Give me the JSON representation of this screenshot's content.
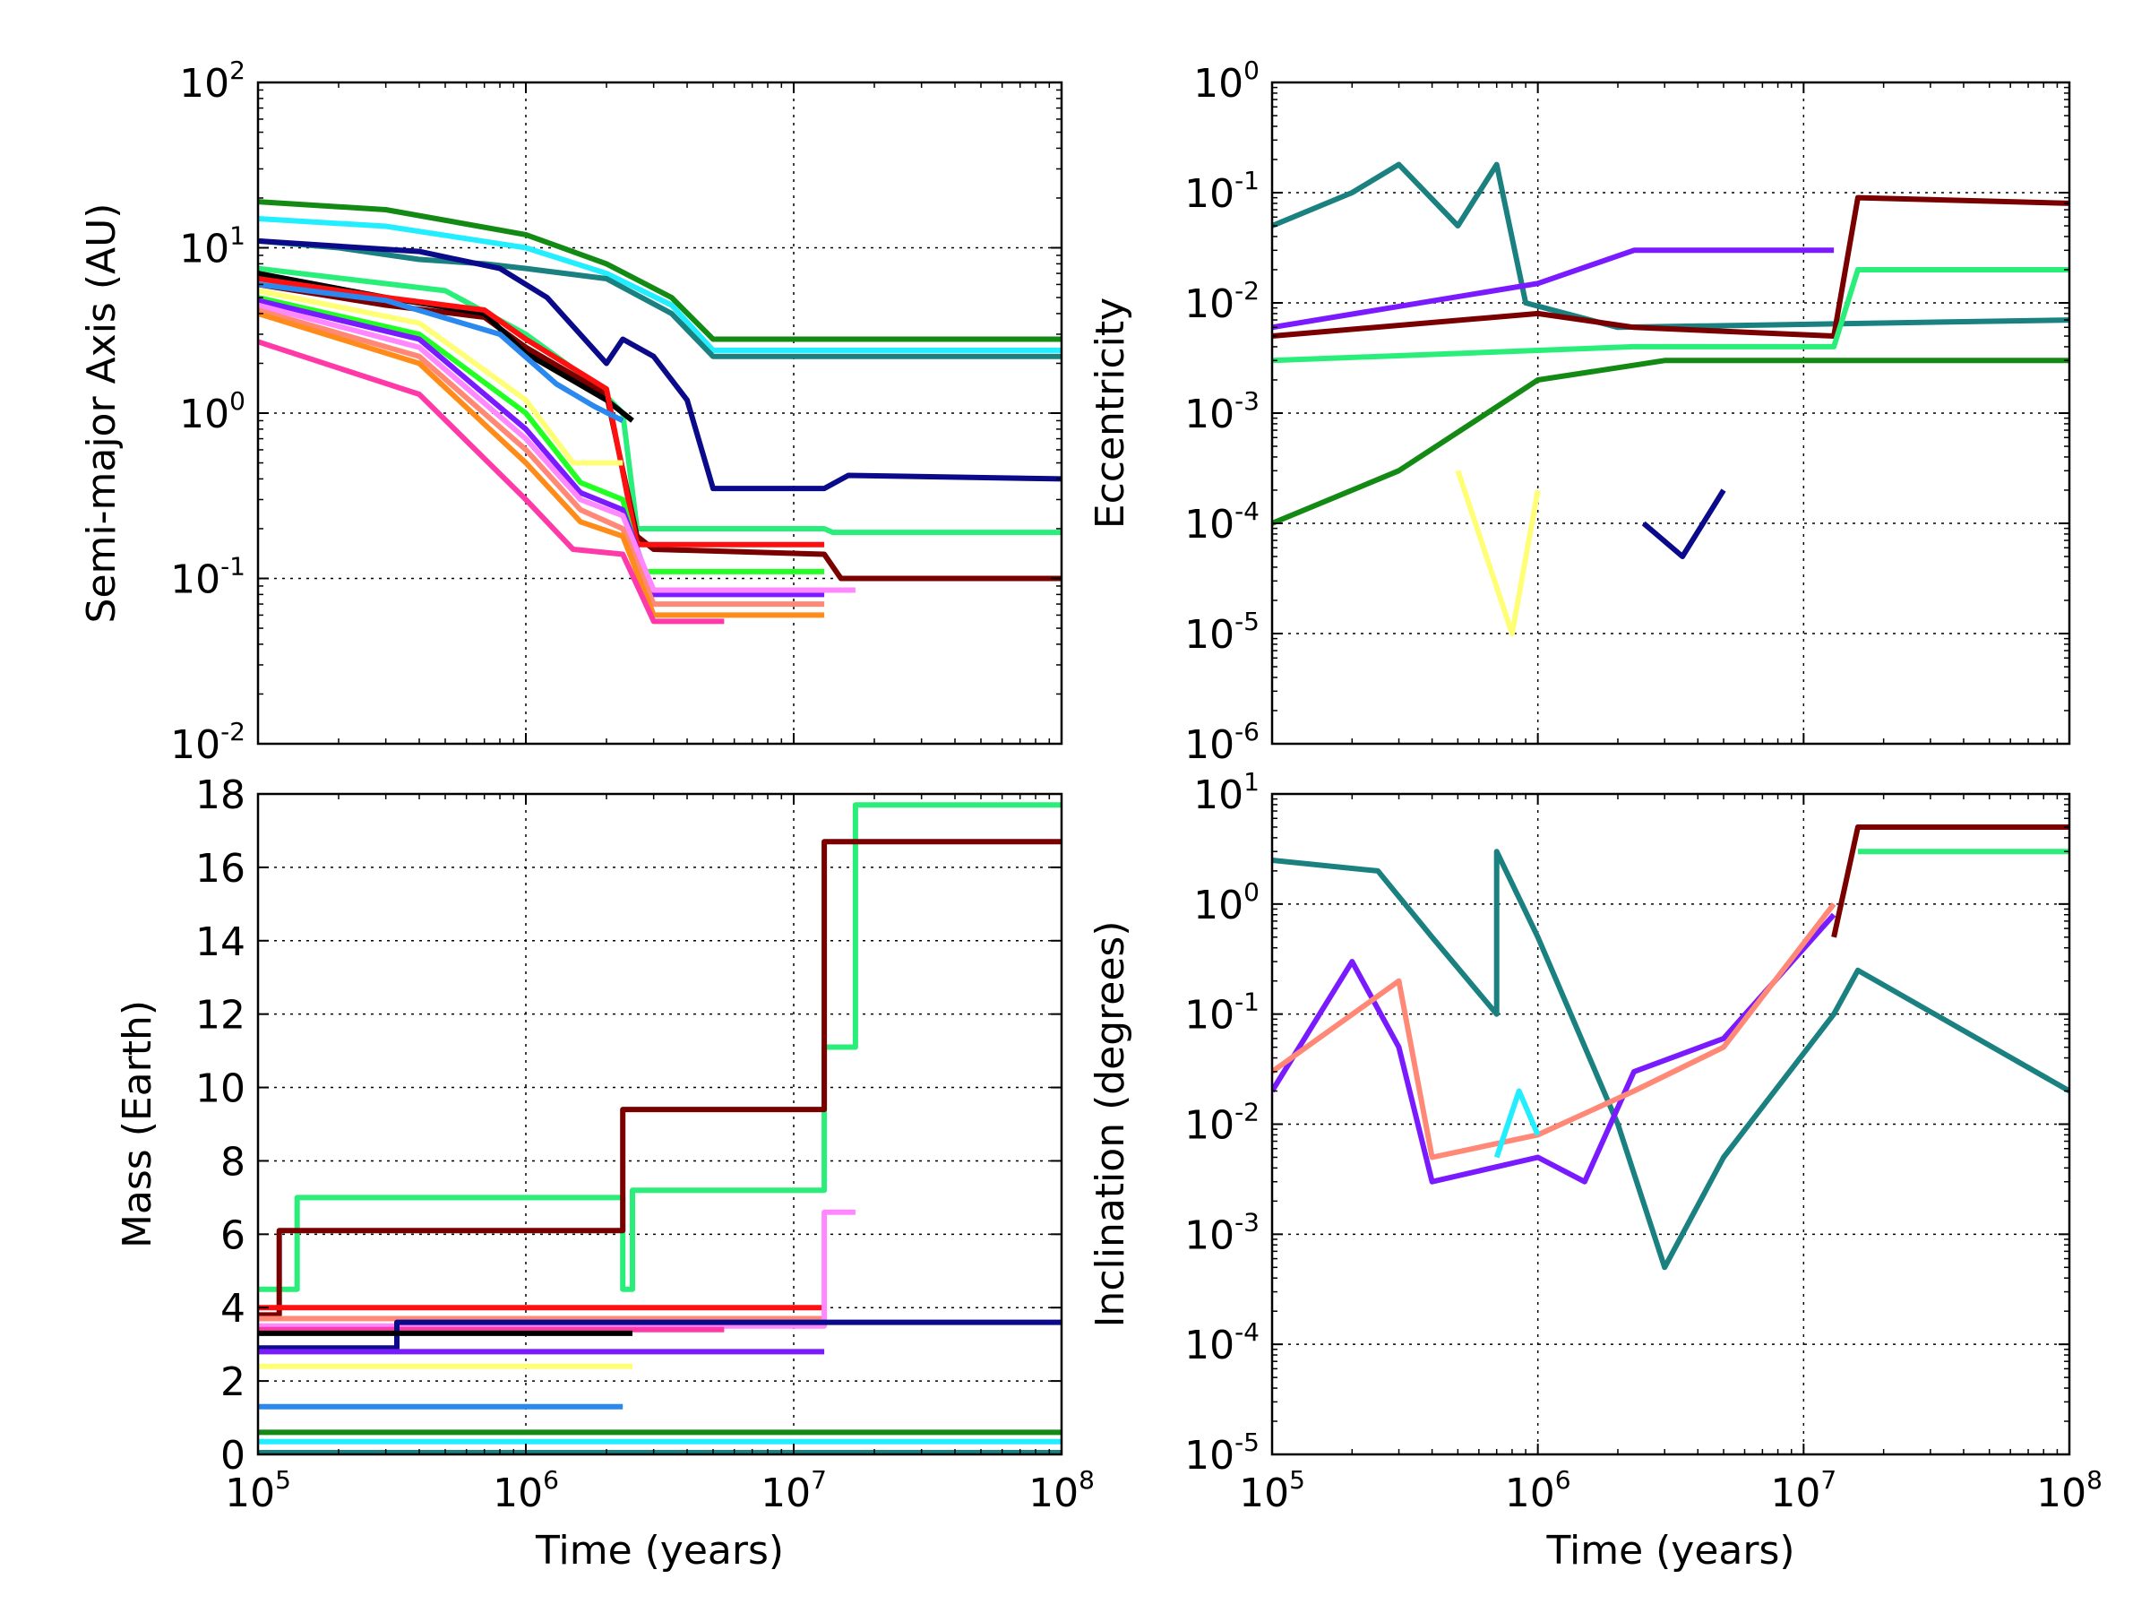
{
  "chart_data": [
    {
      "id": "semimajor",
      "type": "line",
      "xscale": "log",
      "yscale": "log",
      "xlim": [
        100000,
        100000000
      ],
      "ylim": [
        0.01,
        100
      ],
      "xlabel": "",
      "ylabel": "Semi-major Axis (AU)",
      "xtick_labels": false,
      "grid": true,
      "series": [
        {
          "name": "dark green",
          "color": "#138a13",
          "x": [
            100000.0,
            300000.0,
            1000000.0,
            2000000.0,
            3500000.0,
            5000000.0,
            100000000.0
          ],
          "y": [
            19,
            17,
            12,
            8,
            5,
            2.8,
            2.8
          ]
        },
        {
          "name": "cyan",
          "color": "#22eeff",
          "x": [
            100000.0,
            300000.0,
            1000000.0,
            2000000.0,
            3500000.0,
            5000000.0,
            100000000.0
          ],
          "y": [
            15,
            13.5,
            10,
            7,
            4.5,
            2.4,
            2.4
          ]
        },
        {
          "name": "teal",
          "color": "#1a8080",
          "x": [
            100000.0,
            200000.0,
            400000.0,
            700000.0,
            1000000.0,
            2000000.0,
            3500000.0,
            5000000.0,
            100000000.0
          ],
          "y": [
            11,
            10,
            8.5,
            8,
            7.5,
            6.5,
            4,
            2.2,
            2.2
          ]
        },
        {
          "name": "navy",
          "color": "#0a0a8a",
          "x": [
            100000.0,
            400000.0,
            800000.0,
            1200000.0,
            2000000.0,
            2300000.0,
            3000000.0,
            4000000.0,
            5000000.0,
            13000000.0,
            16000000.0,
            100000000.0
          ],
          "y": [
            11,
            9.5,
            7.5,
            5,
            2.0,
            2.8,
            2.2,
            1.2,
            0.35,
            0.35,
            0.42,
            0.4
          ]
        },
        {
          "name": "spring green",
          "color": "#2aee7a",
          "x": [
            100000.0,
            500000.0,
            1000000.0,
            1800000.0,
            2300000.0,
            2600000.0,
            13000000.0,
            14000000.0,
            100000000.0
          ],
          "y": [
            7.5,
            5.5,
            3,
            1.5,
            1.0,
            0.2,
            0.2,
            0.19,
            0.19
          ]
        },
        {
          "name": "maroon",
          "color": "#7a0000",
          "x": [
            100000.0,
            300000.0,
            700000.0,
            1000000.0,
            2000000.0,
            2600000.0,
            3000000.0,
            13000000.0,
            15000000.0,
            100000000.0
          ],
          "y": [
            6,
            4.5,
            3.8,
            2.5,
            1.3,
            0.18,
            0.15,
            0.14,
            0.1,
            0.1
          ]
        },
        {
          "name": "black",
          "color": "#000000",
          "x": [
            100000.0,
            300000.0,
            700000.0,
            1000000.0,
            2000000.0,
            2500000.0
          ],
          "y": [
            7,
            5,
            4.0,
            2.3,
            1.2,
            0.9
          ]
        },
        {
          "name": "red",
          "color": "#ff1010",
          "x": [
            100000.0,
            300000.0,
            700000.0,
            1000000.0,
            2000000.0,
            2600000.0,
            13000000.0
          ],
          "y": [
            6.5,
            5,
            4.2,
            2.8,
            1.4,
            0.16,
            0.16
          ]
        },
        {
          "name": "blue",
          "color": "#2a88ee",
          "x": [
            100000.0,
            300000.0,
            800000.0,
            1300000.0,
            1800000.0,
            2300000.0
          ],
          "y": [
            6,
            4.8,
            3,
            1.5,
            1.1,
            0.9
          ]
        },
        {
          "name": "yellow",
          "color": "#ffff77",
          "x": [
            100000.0,
            400000.0,
            1000000.0,
            1500000.0,
            2300000.0
          ],
          "y": [
            5.5,
            3.5,
            1.2,
            0.5,
            0.5
          ]
        },
        {
          "name": "green",
          "color": "#22ff22",
          "x": [
            100000.0,
            400000.0,
            1000000.0,
            1600000.0,
            2300000.0,
            2700000.0,
            13000000.0
          ],
          "y": [
            5,
            3,
            1.0,
            0.38,
            0.3,
            0.11,
            0.11
          ]
        },
        {
          "name": "violet",
          "color": "#7a1aff",
          "x": [
            100000.0,
            400000.0,
            1000000.0,
            1600000.0,
            2300000.0,
            3000000.0,
            13000000.0
          ],
          "y": [
            4.8,
            2.8,
            0.8,
            0.33,
            0.26,
            0.08,
            0.08
          ]
        },
        {
          "name": "light pink",
          "color": "#ff88ff",
          "x": [
            100000.0,
            400000.0,
            1000000.0,
            1600000.0,
            2300000.0,
            3000000.0,
            13000000.0,
            17000000.0
          ],
          "y": [
            4.5,
            2.5,
            0.7,
            0.3,
            0.24,
            0.085,
            0.085,
            0.085
          ]
        },
        {
          "name": "salmon",
          "color": "#ff8877",
          "x": [
            100000.0,
            400000.0,
            1000000.0,
            1600000.0,
            2300000.0,
            3000000.0,
            13000000.0
          ],
          "y": [
            4.2,
            2.2,
            0.6,
            0.26,
            0.2,
            0.07,
            0.07
          ]
        },
        {
          "name": "orange",
          "color": "#ff8c1a",
          "x": [
            100000.0,
            400000.0,
            1000000.0,
            1600000.0,
            2300000.0,
            3000000.0,
            13000000.0
          ],
          "y": [
            4.0,
            2.0,
            0.5,
            0.22,
            0.18,
            0.06,
            0.06
          ]
        },
        {
          "name": "magenta",
          "color": "#ff3aa8",
          "x": [
            100000.0,
            400000.0,
            1000000.0,
            1500000.0,
            2300000.0,
            3000000.0,
            5500000.0
          ],
          "y": [
            2.7,
            1.3,
            0.3,
            0.15,
            0.14,
            0.055,
            0.055
          ]
        }
      ]
    },
    {
      "id": "eccentricity",
      "type": "line",
      "xscale": "log",
      "yscale": "log",
      "xlim": [
        100000,
        100000000
      ],
      "ylim": [
        1e-06,
        1
      ],
      "xlabel": "",
      "ylabel": "Eccentricity",
      "xtick_labels": false,
      "grid": true,
      "series": [
        {
          "name": "teal",
          "color": "#1a8080",
          "x": [
            100000.0,
            200000.0,
            300000.0,
            500000.0,
            700000.0,
            900000.0,
            2000000.0,
            100000000.0
          ],
          "y": [
            0.05,
            0.1,
            0.18,
            0.05,
            0.18,
            0.01,
            0.006,
            0.007
          ]
        },
        {
          "name": "maroon",
          "color": "#7a0000",
          "x": [
            100000.0,
            1000000.0,
            2300000.0,
            13000000.0,
            16000000.0,
            100000000.0
          ],
          "y": [
            0.005,
            0.008,
            0.006,
            0.005,
            0.09,
            0.08
          ]
        },
        {
          "name": "spring green",
          "color": "#2aee7a",
          "x": [
            100000.0,
            2300000.0,
            13000000.0,
            16000000.0,
            100000000.0
          ],
          "y": [
            0.003,
            0.004,
            0.004,
            0.02,
            0.02
          ]
        },
        {
          "name": "dark green",
          "color": "#138a13",
          "x": [
            100000.0,
            300000.0,
            1000000.0,
            3000000.0,
            100000000.0
          ],
          "y": [
            0.0001,
            0.0003,
            0.002,
            0.003,
            0.003
          ]
        },
        {
          "name": "violet",
          "color": "#7a1aff",
          "x": [
            100000.0,
            1000000.0,
            2300000.0,
            5000000.0,
            13000000.0
          ],
          "y": [
            0.006,
            0.015,
            0.03,
            0.03,
            0.03
          ]
        },
        {
          "name": "navy",
          "color": "#0a0a8a",
          "x": [
            2500000.0,
            3500000.0,
            5000000.0
          ],
          "y": [
            0.0001,
            5e-05,
            0.0002
          ]
        },
        {
          "name": "yellow",
          "color": "#ffff77",
          "x": [
            500000.0,
            800000.0,
            1000000.0
          ],
          "y": [
            0.0003,
            1e-05,
            0.0002
          ]
        }
      ]
    },
    {
      "id": "mass",
      "type": "line",
      "xscale": "log",
      "yscale": "linear",
      "xlim": [
        100000,
        100000000
      ],
      "ylim": [
        0,
        18
      ],
      "xlabel": "Time (years)",
      "ylabel": "Mass (Earth)",
      "grid": true,
      "series": [
        {
          "name": "spring green",
          "color": "#2aee7a",
          "x": [
            100000.0,
            140000.0,
            140000.0,
            2300000.0,
            2300000.0,
            2500000.0,
            2500000.0,
            13000000.0,
            13000000.0,
            17000000.0,
            17000000.0,
            100000000.0
          ],
          "y": [
            4.5,
            4.5,
            7.0,
            7.0,
            4.5,
            4.5,
            7.2,
            7.2,
            11.1,
            11.1,
            17.7,
            17.7
          ]
        },
        {
          "name": "maroon",
          "color": "#7a0000",
          "x": [
            100000.0,
            120000.0,
            120000.0,
            2300000.0,
            2300000.0,
            13000000.0,
            13000000.0,
            100000000.0
          ],
          "y": [
            3.8,
            3.8,
            6.1,
            6.1,
            9.4,
            9.4,
            16.7,
            16.7
          ]
        },
        {
          "name": "red",
          "color": "#ff1010",
          "x": [
            100000.0,
            13000000.0
          ],
          "y": [
            4.0,
            4.0
          ]
        },
        {
          "name": "salmon",
          "color": "#ff8877",
          "x": [
            100000.0,
            13000000.0
          ],
          "y": [
            3.7,
            3.7
          ]
        },
        {
          "name": "light pink",
          "color": "#ff88ff",
          "x": [
            100000.0,
            13000000.0,
            13000000.0,
            17000000.0
          ],
          "y": [
            3.5,
            3.5,
            6.6,
            6.6
          ]
        },
        {
          "name": "magenta",
          "color": "#ff3aa8",
          "x": [
            100000.0,
            5500000.0
          ],
          "y": [
            3.4,
            3.4
          ]
        },
        {
          "name": "navy",
          "color": "#0a0a8a",
          "x": [
            100000.0,
            330000.0,
            330000.0,
            100000000.0
          ],
          "y": [
            2.9,
            2.9,
            3.6,
            3.6
          ]
        },
        {
          "name": "black",
          "color": "#000000",
          "x": [
            100000.0,
            2500000.0
          ],
          "y": [
            3.3,
            3.3
          ]
        },
        {
          "name": "violet",
          "color": "#7a1aff",
          "x": [
            100000.0,
            13000000.0
          ],
          "y": [
            2.8,
            2.8
          ]
        },
        {
          "name": "yellow",
          "color": "#ffff77",
          "x": [
            100000.0,
            2500000.0
          ],
          "y": [
            2.4,
            2.4
          ]
        },
        {
          "name": "blue",
          "color": "#2a88ee",
          "x": [
            100000.0,
            2300000.0
          ],
          "y": [
            1.3,
            1.3
          ]
        },
        {
          "name": "dark green",
          "color": "#138a13",
          "x": [
            100000.0,
            100000000.0
          ],
          "y": [
            0.6,
            0.6
          ]
        },
        {
          "name": "cyan",
          "color": "#22eeff",
          "x": [
            100000.0,
            100000000.0
          ],
          "y": [
            0.35,
            0.35
          ]
        },
        {
          "name": "teal",
          "color": "#1a8080",
          "x": [
            100000.0,
            100000000.0
          ],
          "y": [
            0.05,
            0.05
          ]
        }
      ]
    },
    {
      "id": "inclination",
      "type": "line",
      "xscale": "log",
      "yscale": "log",
      "xlim": [
        100000,
        100000000
      ],
      "ylim": [
        1e-05,
        10
      ],
      "xlabel": "Time (years)",
      "ylabel": "Inclination (degrees)",
      "grid": true,
      "series": [
        {
          "name": "teal",
          "color": "#1a8080",
          "x": [
            100000.0,
            250000.0,
            400000.0,
            700000.0,
            700000.0,
            1000000.0,
            2000000.0,
            3000000.0,
            5000000.0,
            13000000.0,
            16000000.0,
            100000000.0
          ],
          "y": [
            2.5,
            2.0,
            0.5,
            0.1,
            3.0,
            0.5,
            0.01,
            0.0005,
            0.005,
            0.1,
            0.25,
            0.02
          ]
        },
        {
          "name": "maroon",
          "color": "#7a0000",
          "x": [
            13000000.0,
            16000000.0,
            100000000.0
          ],
          "y": [
            0.5,
            5,
            5
          ]
        },
        {
          "name": "spring green",
          "color": "#2aee7a",
          "x": [
            16000000.0,
            100000000.0
          ],
          "y": [
            3,
            3
          ]
        },
        {
          "name": "violet",
          "color": "#7a1aff",
          "x": [
            100000.0,
            200000.0,
            300000.0,
            400000.0,
            1000000.0,
            1500000.0,
            2300000.0,
            5000000.0,
            13000000.0
          ],
          "y": [
            0.02,
            0.3,
            0.05,
            0.003,
            0.005,
            0.003,
            0.03,
            0.06,
            0.8
          ]
        },
        {
          "name": "salmon",
          "color": "#ff8877",
          "x": [
            100000.0,
            300000.0,
            400000.0,
            1000000.0,
            2300000.0,
            5000000.0,
            13000000.0
          ],
          "y": [
            0.03,
            0.2,
            0.005,
            0.008,
            0.02,
            0.05,
            1.0
          ]
        },
        {
          "name": "cyan",
          "color": "#22eeff",
          "x": [
            700000.0,
            850000.0,
            1000000.0
          ],
          "y": [
            0.005,
            0.02,
            0.008
          ]
        }
      ]
    }
  ],
  "tick_labels": {
    "log_base": "10",
    "semimajor_y_exponents": [
      "-2",
      "-1",
      "0",
      "1",
      "2"
    ],
    "eccentricity_y_exponents": [
      "-6",
      "-5",
      "-4",
      "-3",
      "-2",
      "-1",
      "0"
    ],
    "inclination_y_exponents": [
      "-5",
      "-4",
      "-3",
      "-2",
      "-1",
      "0",
      "1"
    ],
    "mass_y_values": [
      "0",
      "2",
      "4",
      "6",
      "8",
      "10",
      "12",
      "14",
      "16",
      "18"
    ],
    "x_exponents": [
      "5",
      "6",
      "7",
      "8"
    ]
  }
}
